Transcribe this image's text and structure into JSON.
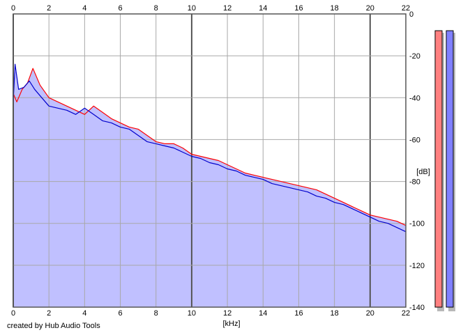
{
  "credit": "created by Hub Audio Tools",
  "chart_data": {
    "type": "area",
    "x_unit_label": "[kHz]",
    "y_unit_label": "[dB]",
    "xlim": [
      0,
      22
    ],
    "ylim": [
      -140,
      0
    ],
    "x_ticks": [
      0,
      2,
      4,
      6,
      8,
      10,
      12,
      14,
      16,
      18,
      20,
      22
    ],
    "y_ticks": [
      0,
      -20,
      -40,
      -60,
      -80,
      -100,
      -120,
      -140
    ],
    "grid": true,
    "background_color": "#ffffff",
    "fill_color": "#c0c0ff",
    "x_axis_position": "top and bottom",
    "y_axis_position": "right",
    "series": [
      {
        "color": "#ff0000",
        "x": [
          0.0,
          0.2,
          0.5,
          0.8,
          1.1,
          1.5,
          2.0,
          2.5,
          3.0,
          3.5,
          4.0,
          4.5,
          5.0,
          5.5,
          6.0,
          6.5,
          7.0,
          7.5,
          8.0,
          8.5,
          9.0,
          9.5,
          10.0,
          10.5,
          11.0,
          11.5,
          12.0,
          12.5,
          13.0,
          13.5,
          14.0,
          14.5,
          15.0,
          15.5,
          16.0,
          16.5,
          17.0,
          17.5,
          18.0,
          18.5,
          19.0,
          19.5,
          20.0,
          20.5,
          21.0,
          21.5,
          22.0
        ],
        "y": [
          -38,
          -42,
          -36,
          -33,
          -26,
          -34,
          -40,
          -42,
          -44,
          -46,
          -48,
          -44,
          -47,
          -50,
          -52,
          -54,
          -55,
          -58,
          -61,
          -62,
          -62,
          -64,
          -67,
          -68,
          -69,
          -70,
          -72,
          -74,
          -76,
          -77,
          -78,
          -79,
          -80,
          -81,
          -82,
          -83,
          -84,
          -86,
          -88,
          -90,
          -92,
          -94,
          -96,
          -97,
          -98,
          -99,
          -101
        ]
      },
      {
        "color": "#0000cc",
        "x": [
          0.0,
          0.1,
          0.3,
          0.6,
          0.9,
          1.2,
          1.6,
          2.0,
          2.5,
          3.0,
          3.5,
          4.0,
          4.5,
          5.0,
          5.5,
          6.0,
          6.5,
          7.0,
          7.5,
          8.0,
          8.5,
          9.0,
          9.5,
          10.0,
          10.5,
          11.0,
          11.5,
          12.0,
          12.5,
          13.0,
          13.5,
          14.0,
          14.5,
          15.0,
          15.5,
          16.0,
          16.5,
          17.0,
          17.5,
          18.0,
          18.5,
          19.0,
          19.5,
          20.0,
          20.5,
          21.0,
          21.5,
          22.0
        ],
        "y": [
          -42,
          -24,
          -36,
          -35,
          -32,
          -36,
          -40,
          -44,
          -45,
          -46,
          -48,
          -45,
          -48,
          -51,
          -52,
          -54,
          -55,
          -58,
          -61,
          -62,
          -63,
          -64,
          -66,
          -68,
          -69,
          -71,
          -72,
          -74,
          -75,
          -77,
          -78,
          -79,
          -81,
          -82,
          -83,
          -84,
          -85,
          -87,
          -88,
          -90,
          -91,
          -93,
          -95,
          -97,
          -99,
          -100,
          -102,
          -104
        ]
      }
    ],
    "level_meters": [
      {
        "color": "#ff8080",
        "level_db": -8
      },
      {
        "color": "#8080ff",
        "level_db": -8
      }
    ]
  }
}
